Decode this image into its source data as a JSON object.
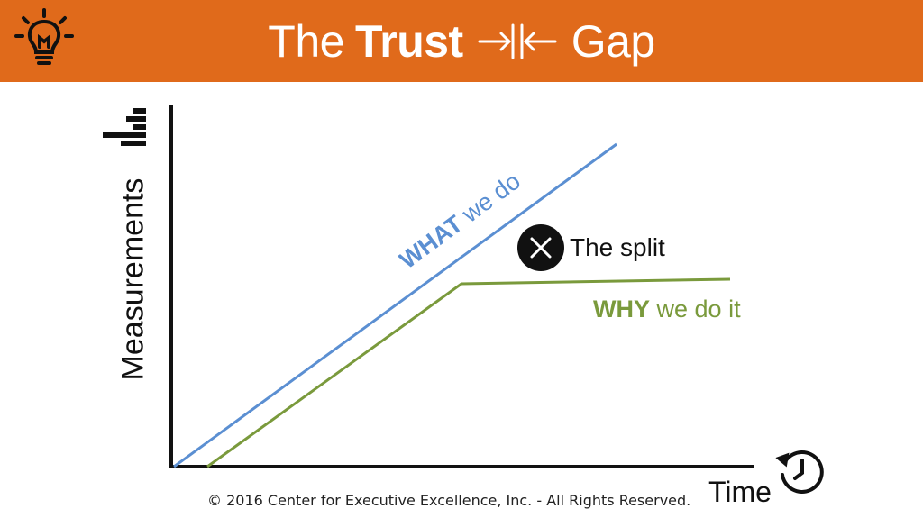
{
  "header": {
    "title_prefix": "The",
    "title_bold": "Trust",
    "title_suffix": "Gap",
    "bg_color": "#e06a1b",
    "icon": "lightbulb-icon"
  },
  "diagram": {
    "y_axis_label": "Measurements",
    "x_axis_label": "Time",
    "y_axis_icon": "bar-chart-icon",
    "x_axis_icon": "clock-history-icon",
    "what_line": {
      "bold": "WHAT",
      "rest": "we do",
      "color": "#5b8fd2"
    },
    "why_line": {
      "bold": "WHY",
      "rest": "we do it",
      "color": "#7a9a3c"
    },
    "split": {
      "label": "The split",
      "icon": "x-circle-icon"
    }
  },
  "footer": {
    "copyright": "© 2016 Center for Executive Excellence, Inc. - All Rights Reserved."
  }
}
